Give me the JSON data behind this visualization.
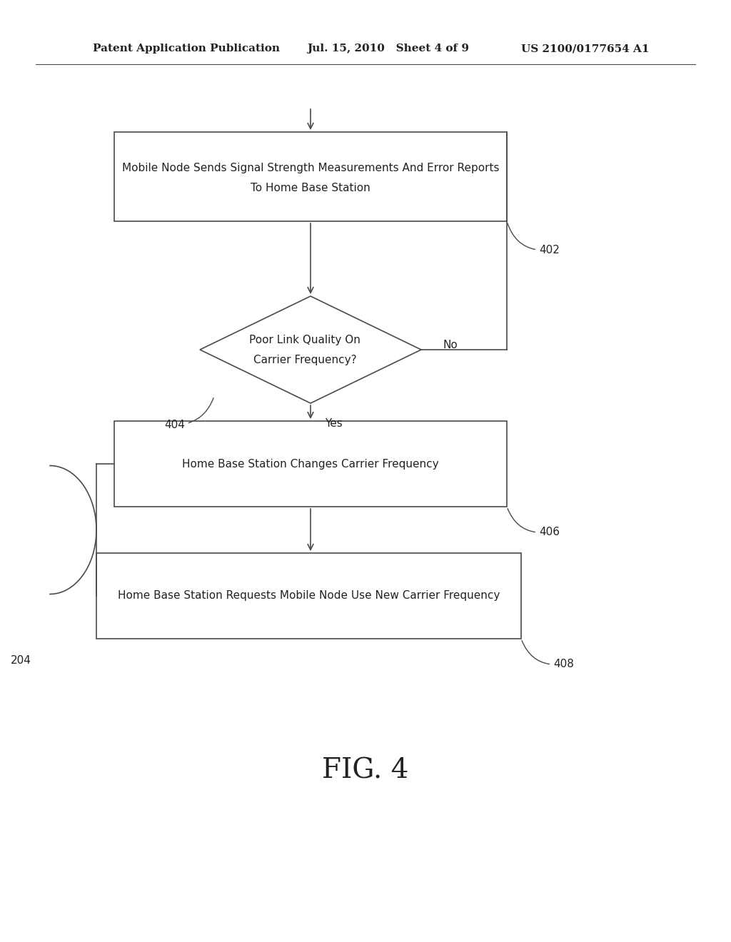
{
  "bg_color": "#ffffff",
  "header_left": "Patent Application Publication",
  "header_mid": "Jul. 15, 2010   Sheet 4 of 9",
  "header_right": "US 2100/0177654 A1",
  "fig_label": "FIG. 4",
  "box402_text_line1": "Mobile Node Sends Signal Strength Measurements And Error Reports",
  "box402_text_line2": "To Home Base Station",
  "box402_label": "402",
  "diamond_text1": "Poor Link Quality On",
  "diamond_text2": "Carrier Frequency?",
  "diamond_label": "404",
  "box406_text": "Home Base Station Changes Carrier Frequency",
  "box406_label": "406",
  "box408_text": "Home Base Station Requests Mobile Node Use New Carrier Frequency",
  "box408_label": "408",
  "no_label": "No",
  "yes_label": "Yes",
  "loop_label": "204",
  "line_color": "#4a4a4a",
  "text_color": "#222222"
}
